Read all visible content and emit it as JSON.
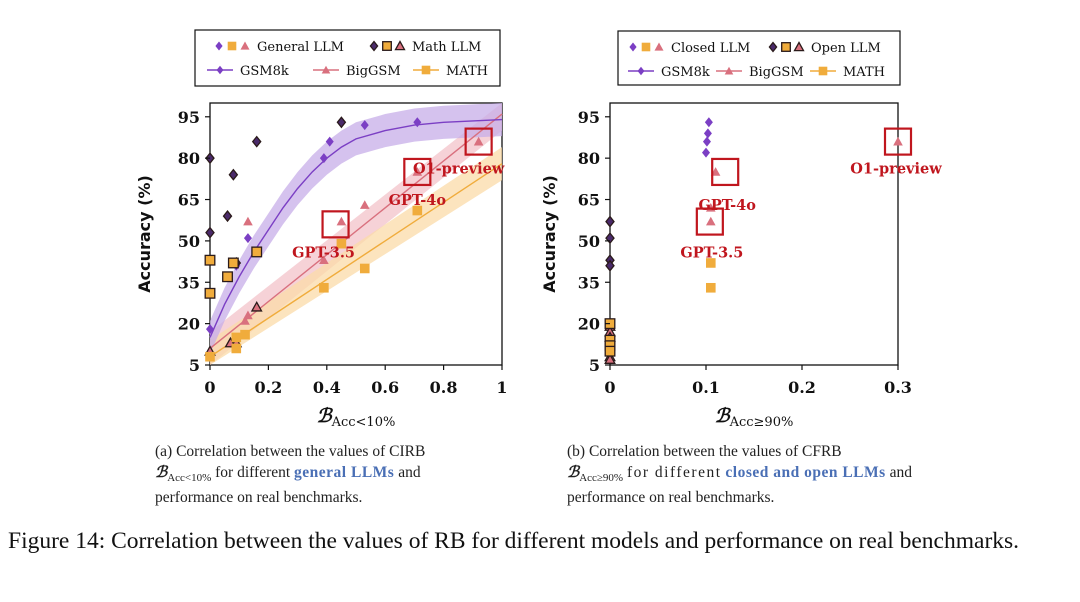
{
  "figure_caption": "Figure 14: Correlation between the values of RB for different models and performance on real benchmarks.",
  "colors": {
    "gsm8k": "#7b3fc4",
    "bigGSM": "#d9707e",
    "math": "#f0ac3c",
    "red_label": "#c0161e",
    "dark_marker": "#4a2a6a",
    "band_purple": "#c7aee8",
    "band_pink": "#f3c3c9",
    "band_orange": "#fbdba8",
    "caption_highlight": "#4a6fb5"
  },
  "chart_data": [
    {
      "panel": "a",
      "type": "scatter",
      "xlabel": "B_Acc<10%",
      "xlabel_main": "ℬ",
      "xlabel_sub": "Acc<10%",
      "ylabel": "Accuracy (%)",
      "xlim": [
        0,
        1
      ],
      "ylim": [
        5,
        100
      ],
      "xticks": [
        0,
        0.2,
        0.4,
        0.6,
        0.8,
        1
      ],
      "xtick_labels": [
        "0",
        "0.2",
        "0.4",
        "0.6",
        "0.8",
        "1"
      ],
      "yticks": [
        5,
        20,
        35,
        50,
        65,
        80,
        95
      ],
      "legend": {
        "row1": [
          {
            "label": "General LLM",
            "markers": [
              "diamond",
              "square",
              "triangle"
            ],
            "style": "filled"
          },
          {
            "label": "Math LLM",
            "markers": [
              "diamond",
              "square",
              "triangle"
            ],
            "style": "outlined"
          }
        ],
        "row2": [
          {
            "label": "GSM8k",
            "series": "gsm8k"
          },
          {
            "label": "BigGSM",
            "series": "bigGSM"
          },
          {
            "label": "MATH",
            "series": "math"
          }
        ]
      },
      "series": [
        {
          "name": "GSM8k",
          "key": "gsm8k",
          "marker": "diamond",
          "general": [
            [
              0.0,
              18
            ],
            [
              0.09,
              41
            ],
            [
              0.13,
              51
            ],
            [
              0.39,
              80
            ],
            [
              0.41,
              86
            ],
            [
              0.53,
              92
            ],
            [
              0.71,
              93
            ]
          ],
          "math": [
            [
              0.0,
              80
            ],
            [
              0.0,
              53
            ],
            [
              0.06,
              59
            ],
            [
              0.08,
              74
            ],
            [
              0.16,
              86
            ],
            [
              0.45,
              93
            ],
            [
              0.09,
              42
            ]
          ]
        },
        {
          "name": "BigGSM",
          "key": "bigGSM",
          "marker": "triangle",
          "general": [
            [
              0.13,
              23
            ],
            [
              0.12,
              21
            ],
            [
              0.13,
              57
            ],
            [
              0.39,
              43
            ],
            [
              0.53,
              63
            ],
            [
              0.71,
              75
            ],
            [
              0.92,
              86
            ],
            [
              0.45,
              57
            ]
          ],
          "math": [
            [
              0.0,
              10
            ],
            [
              0.07,
              13
            ],
            [
              0.09,
              13
            ],
            [
              0.16,
              26
            ]
          ]
        },
        {
          "name": "MATH",
          "key": "math",
          "marker": "square",
          "general": [
            [
              0.0,
              8
            ],
            [
              0.09,
              11
            ],
            [
              0.09,
              15
            ],
            [
              0.12,
              16
            ],
            [
              0.39,
              33
            ],
            [
              0.53,
              40
            ],
            [
              0.71,
              61
            ],
            [
              0.45,
              49
            ]
          ],
          "math": [
            [
              0.0,
              43
            ],
            [
              0.0,
              31
            ],
            [
              0.06,
              37
            ],
            [
              0.08,
              42
            ],
            [
              0.16,
              46
            ]
          ]
        }
      ],
      "fit_curves": {
        "gsm8k": {
          "x": [
            0,
            0.05,
            0.1,
            0.15,
            0.2,
            0.25,
            0.3,
            0.35,
            0.4,
            0.45,
            0.5,
            0.6,
            0.7,
            0.8,
            0.9,
            1.0
          ],
          "y": [
            15,
            27,
            37,
            46,
            54,
            62,
            69,
            75,
            80,
            84,
            87,
            90,
            92,
            93,
            93.5,
            94
          ],
          "band": 6
        },
        "bigGSM": {
          "x": [
            0,
            1
          ],
          "y": [
            11,
            96
          ],
          "band": 6
        },
        "math": {
          "x": [
            0,
            1
          ],
          "y": [
            8,
            78
          ],
          "band": 6
        }
      },
      "highlights": [
        {
          "label": "GPT-3.5",
          "x": 0.43,
          "y": 56,
          "label_pos": "below-left"
        },
        {
          "label": "GPT-4o",
          "x": 0.71,
          "y": 75,
          "label_pos": "below"
        },
        {
          "label": "O1-preview",
          "x": 0.92,
          "y": 86,
          "label_pos": "below-left"
        }
      ],
      "caption_prefix": "(a) Correlation between the values of CIRB",
      "caption_sym": "ℬ",
      "caption_sub": "Acc<10%",
      "caption_mid": "for different",
      "caption_hl": "general LLMs",
      "caption_after": "and",
      "caption_end": "performance on real benchmarks."
    },
    {
      "panel": "b",
      "type": "scatter",
      "xlabel": "B_Acc≥90%",
      "xlabel_main": "ℬ",
      "xlabel_sub": "Acc≥90%",
      "ylabel": "Accuracy (%)",
      "xlim": [
        0,
        0.3
      ],
      "ylim": [
        5,
        100
      ],
      "xticks": [
        0,
        0.1,
        0.2,
        0.3
      ],
      "xtick_labels": [
        "0",
        "0.1",
        "0.2",
        "0.3"
      ],
      "yticks": [
        5,
        20,
        35,
        50,
        65,
        80,
        95
      ],
      "legend": {
        "row1": [
          {
            "label": "Closed LLM",
            "markers": [
              "diamond",
              "square",
              "triangle"
            ],
            "style": "filled"
          },
          {
            "label": "Open LLM",
            "markers": [
              "diamond",
              "square",
              "triangle"
            ],
            "style": "outlined"
          }
        ],
        "row2": [
          {
            "label": "GSM8k",
            "series": "gsm8k"
          },
          {
            "label": "BigGSM",
            "series": "bigGSM"
          },
          {
            "label": "MATH",
            "series": "math"
          }
        ]
      },
      "series": [
        {
          "name": "GSM8k",
          "key": "gsm8k",
          "marker": "diamond",
          "closed": [
            [
              0.103,
              93
            ],
            [
              0.102,
              89
            ],
            [
              0.101,
              86
            ],
            [
              0.1,
              82
            ]
          ],
          "open": [
            [
              0.0,
              57
            ],
            [
              0.0,
              51
            ],
            [
              0.0,
              43
            ],
            [
              0.0,
              41
            ],
            [
              0.0,
              20
            ]
          ]
        },
        {
          "name": "BigGSM",
          "key": "bigGSM",
          "marker": "triangle",
          "closed": [
            [
              0.11,
              75
            ],
            [
              0.105,
              62
            ],
            [
              0.105,
              57
            ],
            [
              0.3,
              86
            ]
          ],
          "open": [
            [
              0.0,
              19
            ],
            [
              0.0,
              17
            ],
            [
              0.0,
              15
            ],
            [
              0.0,
              8
            ],
            [
              0.0,
              7
            ]
          ]
        },
        {
          "name": "MATH",
          "key": "math",
          "marker": "square",
          "closed": [
            [
              0.105,
              42
            ],
            [
              0.105,
              33
            ]
          ],
          "open": [
            [
              0.0,
              20
            ],
            [
              0.0,
              14
            ],
            [
              0.0,
              12
            ],
            [
              0.0,
              10
            ]
          ]
        }
      ],
      "highlights": [
        {
          "label": "GPT-4o",
          "x": 0.12,
          "y": 75,
          "label_pos": "below"
        },
        {
          "label": "GPT-3.5",
          "x": 0.104,
          "y": 57,
          "label_pos": "below"
        },
        {
          "label": "O1-preview",
          "x": 0.3,
          "y": 86,
          "label_pos": "below"
        }
      ],
      "caption_prefix": "(b) Correlation between the values of CFRB",
      "caption_sym": "ℬ",
      "caption_sub": "Acc≥90%",
      "caption_mid": "for different",
      "caption_hl": "closed and open LLMs",
      "caption_after": "and performance on real benchmarks.",
      "caption_end": ""
    }
  ]
}
